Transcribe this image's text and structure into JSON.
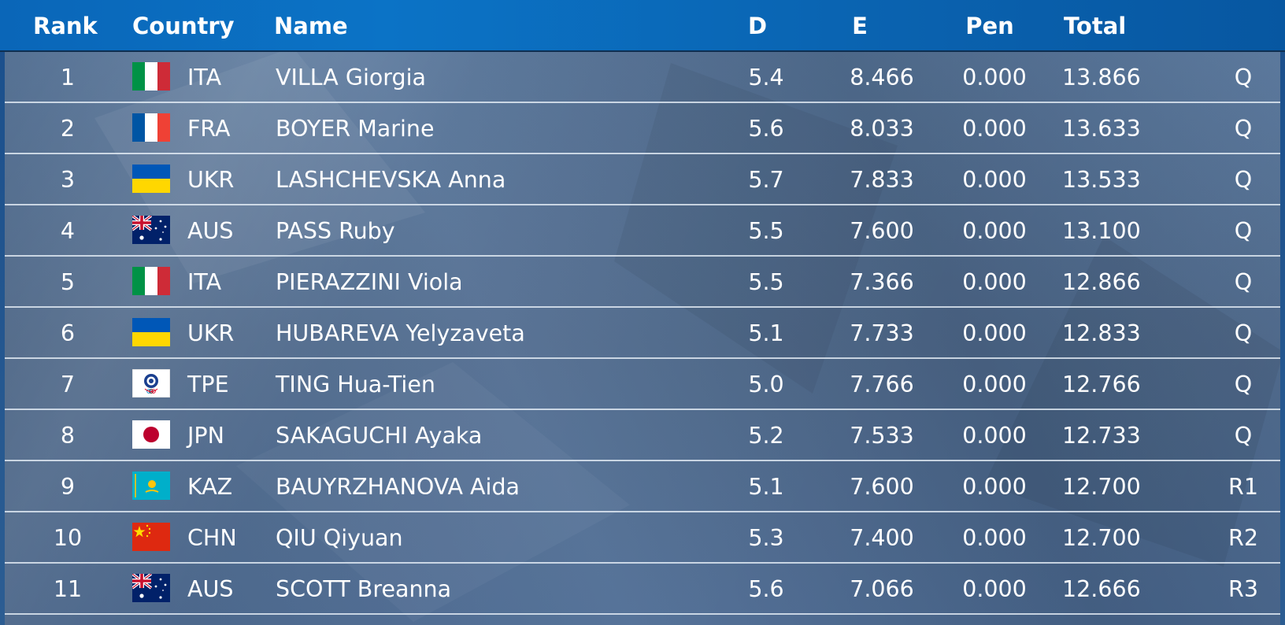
{
  "headers": {
    "rank": "Rank",
    "country": "Country",
    "name": "Name",
    "d": "D",
    "e": "E",
    "pen": "Pen",
    "total": "Total"
  },
  "rows": [
    {
      "rank": "1",
      "flag": "ita",
      "country": "ITA",
      "name": "VILLA Giorgia",
      "d": "5.4",
      "e": "8.466",
      "pen": "0.000",
      "total": "13.866",
      "status": "Q"
    },
    {
      "rank": "2",
      "flag": "fra",
      "country": "FRA",
      "name": "BOYER Marine",
      "d": "5.6",
      "e": "8.033",
      "pen": "0.000",
      "total": "13.633",
      "status": "Q"
    },
    {
      "rank": "3",
      "flag": "ukr",
      "country": "UKR",
      "name": "LASHCHEVSKA Anna",
      "d": "5.7",
      "e": "7.833",
      "pen": "0.000",
      "total": "13.533",
      "status": "Q"
    },
    {
      "rank": "4",
      "flag": "aus",
      "country": "AUS",
      "name": "PASS Ruby",
      "d": "5.5",
      "e": "7.600",
      "pen": "0.000",
      "total": "13.100",
      "status": "Q"
    },
    {
      "rank": "5",
      "flag": "ita",
      "country": "ITA",
      "name": "PIERAZZINI Viola",
      "d": "5.5",
      "e": "7.366",
      "pen": "0.000",
      "total": "12.866",
      "status": "Q"
    },
    {
      "rank": "6",
      "flag": "ukr",
      "country": "UKR",
      "name": "HUBAREVA Yelyzaveta",
      "d": "5.1",
      "e": "7.733",
      "pen": "0.000",
      "total": "12.833",
      "status": "Q"
    },
    {
      "rank": "7",
      "flag": "tpe",
      "country": "TPE",
      "name": "TING Hua-Tien",
      "d": "5.0",
      "e": "7.766",
      "pen": "0.000",
      "total": "12.766",
      "status": "Q"
    },
    {
      "rank": "8",
      "flag": "jpn",
      "country": "JPN",
      "name": "SAKAGUCHI Ayaka",
      "d": "5.2",
      "e": "7.533",
      "pen": "0.000",
      "total": "12.733",
      "status": "Q"
    },
    {
      "rank": "9",
      "flag": "kaz",
      "country": "KAZ",
      "name": "BAUYRZHANOVA Aida",
      "d": "5.1",
      "e": "7.600",
      "pen": "0.000",
      "total": "12.700",
      "status": "R1"
    },
    {
      "rank": "10",
      "flag": "chn",
      "country": "CHN",
      "name": "QIU Qiyuan",
      "d": "5.3",
      "e": "7.400",
      "pen": "0.000",
      "total": "12.700",
      "status": "R2"
    },
    {
      "rank": "11",
      "flag": "aus",
      "country": "AUS",
      "name": "SCOTT Breanna",
      "d": "5.6",
      "e": "7.066",
      "pen": "0.000",
      "total": "12.666",
      "status": "R3"
    }
  ],
  "colors": {
    "header_bg": "#0a6cbd",
    "row_divider": "#e8f0f8",
    "text": "#ffffff"
  }
}
